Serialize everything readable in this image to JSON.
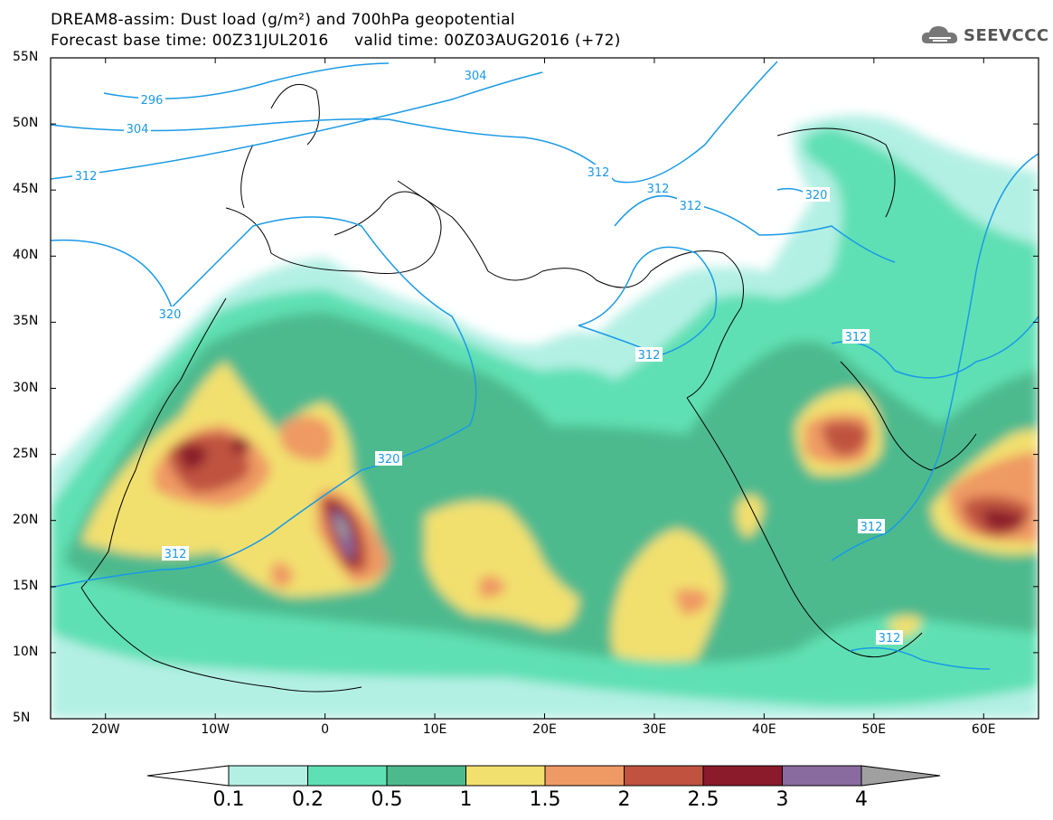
{
  "title": {
    "line1": "DREAM8-assim: Dust load (g/m²) and 700hPa geopotential",
    "line2": "Forecast base time: 00Z31JUL2016     valid time: 00Z03AUG2016 (+72)"
  },
  "logo": {
    "text": "SEEVCCC",
    "icon": "cloud-icon"
  },
  "map": {
    "lat_labels": [
      "55N",
      "50N",
      "45N",
      "40N",
      "35N",
      "30N",
      "25N",
      "20N",
      "15N",
      "10N",
      "5N"
    ],
    "lon_labels": [
      "20W",
      "10W",
      "0",
      "10E",
      "20E",
      "30E",
      "40E",
      "50E",
      "60E"
    ],
    "contour_labels": [
      "296",
      "304",
      "304",
      "312",
      "312",
      "312",
      "312",
      "320",
      "320",
      "320",
      "312",
      "312",
      "312"
    ],
    "colors": {
      "c01": "#b3f0e4",
      "c02": "#5fe0b4",
      "c05": "#4dba8e",
      "c1": "#f2e06e",
      "c15": "#ef9a64",
      "c2": "#c0523f",
      "c25": "#8b1a2a",
      "c3": "#8a6b9f",
      "c4": "#a0a0a0",
      "contour": "#1a9ae6"
    }
  },
  "colorbar": {
    "labels": [
      "0.1",
      "0.2",
      "0.5",
      "1",
      "1.5",
      "2",
      "2.5",
      "3",
      "4"
    ],
    "colors": [
      "#ffffff",
      "#b3f0e4",
      "#5fe0b4",
      "#4dba8e",
      "#f2e06e",
      "#ef9a64",
      "#c0523f",
      "#8b1a2a",
      "#8a6b9f",
      "#a0a0a0"
    ]
  }
}
